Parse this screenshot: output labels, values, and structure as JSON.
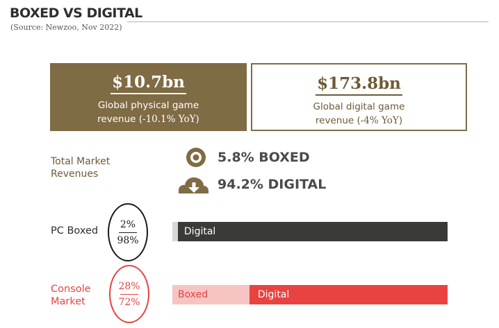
{
  "header": {
    "title": "BOXED VS DIGITAL",
    "source": "(Source: Newzoo, Nov 2022)"
  },
  "cards": {
    "physical": {
      "amount": "$10.7bn",
      "caption_line1": "Global physical game",
      "caption_line2_prefix": "revenue (",
      "yoy": "-10.1% YoY",
      "caption_line2_suffix": ")"
    },
    "digital": {
      "amount": "$173.8bn",
      "caption_line1": "Global digital game",
      "caption_line2_prefix": "revenue (",
      "yoy": "-4% YoY",
      "caption_line2_suffix": ")"
    }
  },
  "total_market": {
    "label_line1": "Total Market",
    "label_line2": "Revenues",
    "boxed_text": "5.8% BOXED",
    "digital_text": "94.2% DIGITAL",
    "boxed_icon": "disc-icon",
    "digital_icon": "cloud-download-icon"
  },
  "colors": {
    "brown": "#7f6b44",
    "dark_bar": "#3a3a36",
    "light_gray": "#d8d8d8",
    "red": "#e84340",
    "pink": "#f7c4c4"
  },
  "chart_data": {
    "type": "bar",
    "orientation": "horizontal",
    "stacked": true,
    "normalized_to": 100,
    "categories": [
      "PC Boxed",
      "Console Market"
    ],
    "category_labels": [
      [
        "PC Boxed"
      ],
      [
        "Console",
        "Market"
      ]
    ],
    "series": [
      {
        "name": "Boxed",
        "values": [
          2,
          28
        ]
      },
      {
        "name": "Digital",
        "values": [
          98,
          72
        ]
      }
    ],
    "circle_labels": [
      {
        "top": "2%",
        "bottom": "98%"
      },
      {
        "top": "28%",
        "bottom": "72%"
      }
    ],
    "segment_labels": [
      {
        "boxed": "",
        "digital": "Digital"
      },
      {
        "boxed": "Boxed",
        "digital": "Digital"
      }
    ]
  }
}
